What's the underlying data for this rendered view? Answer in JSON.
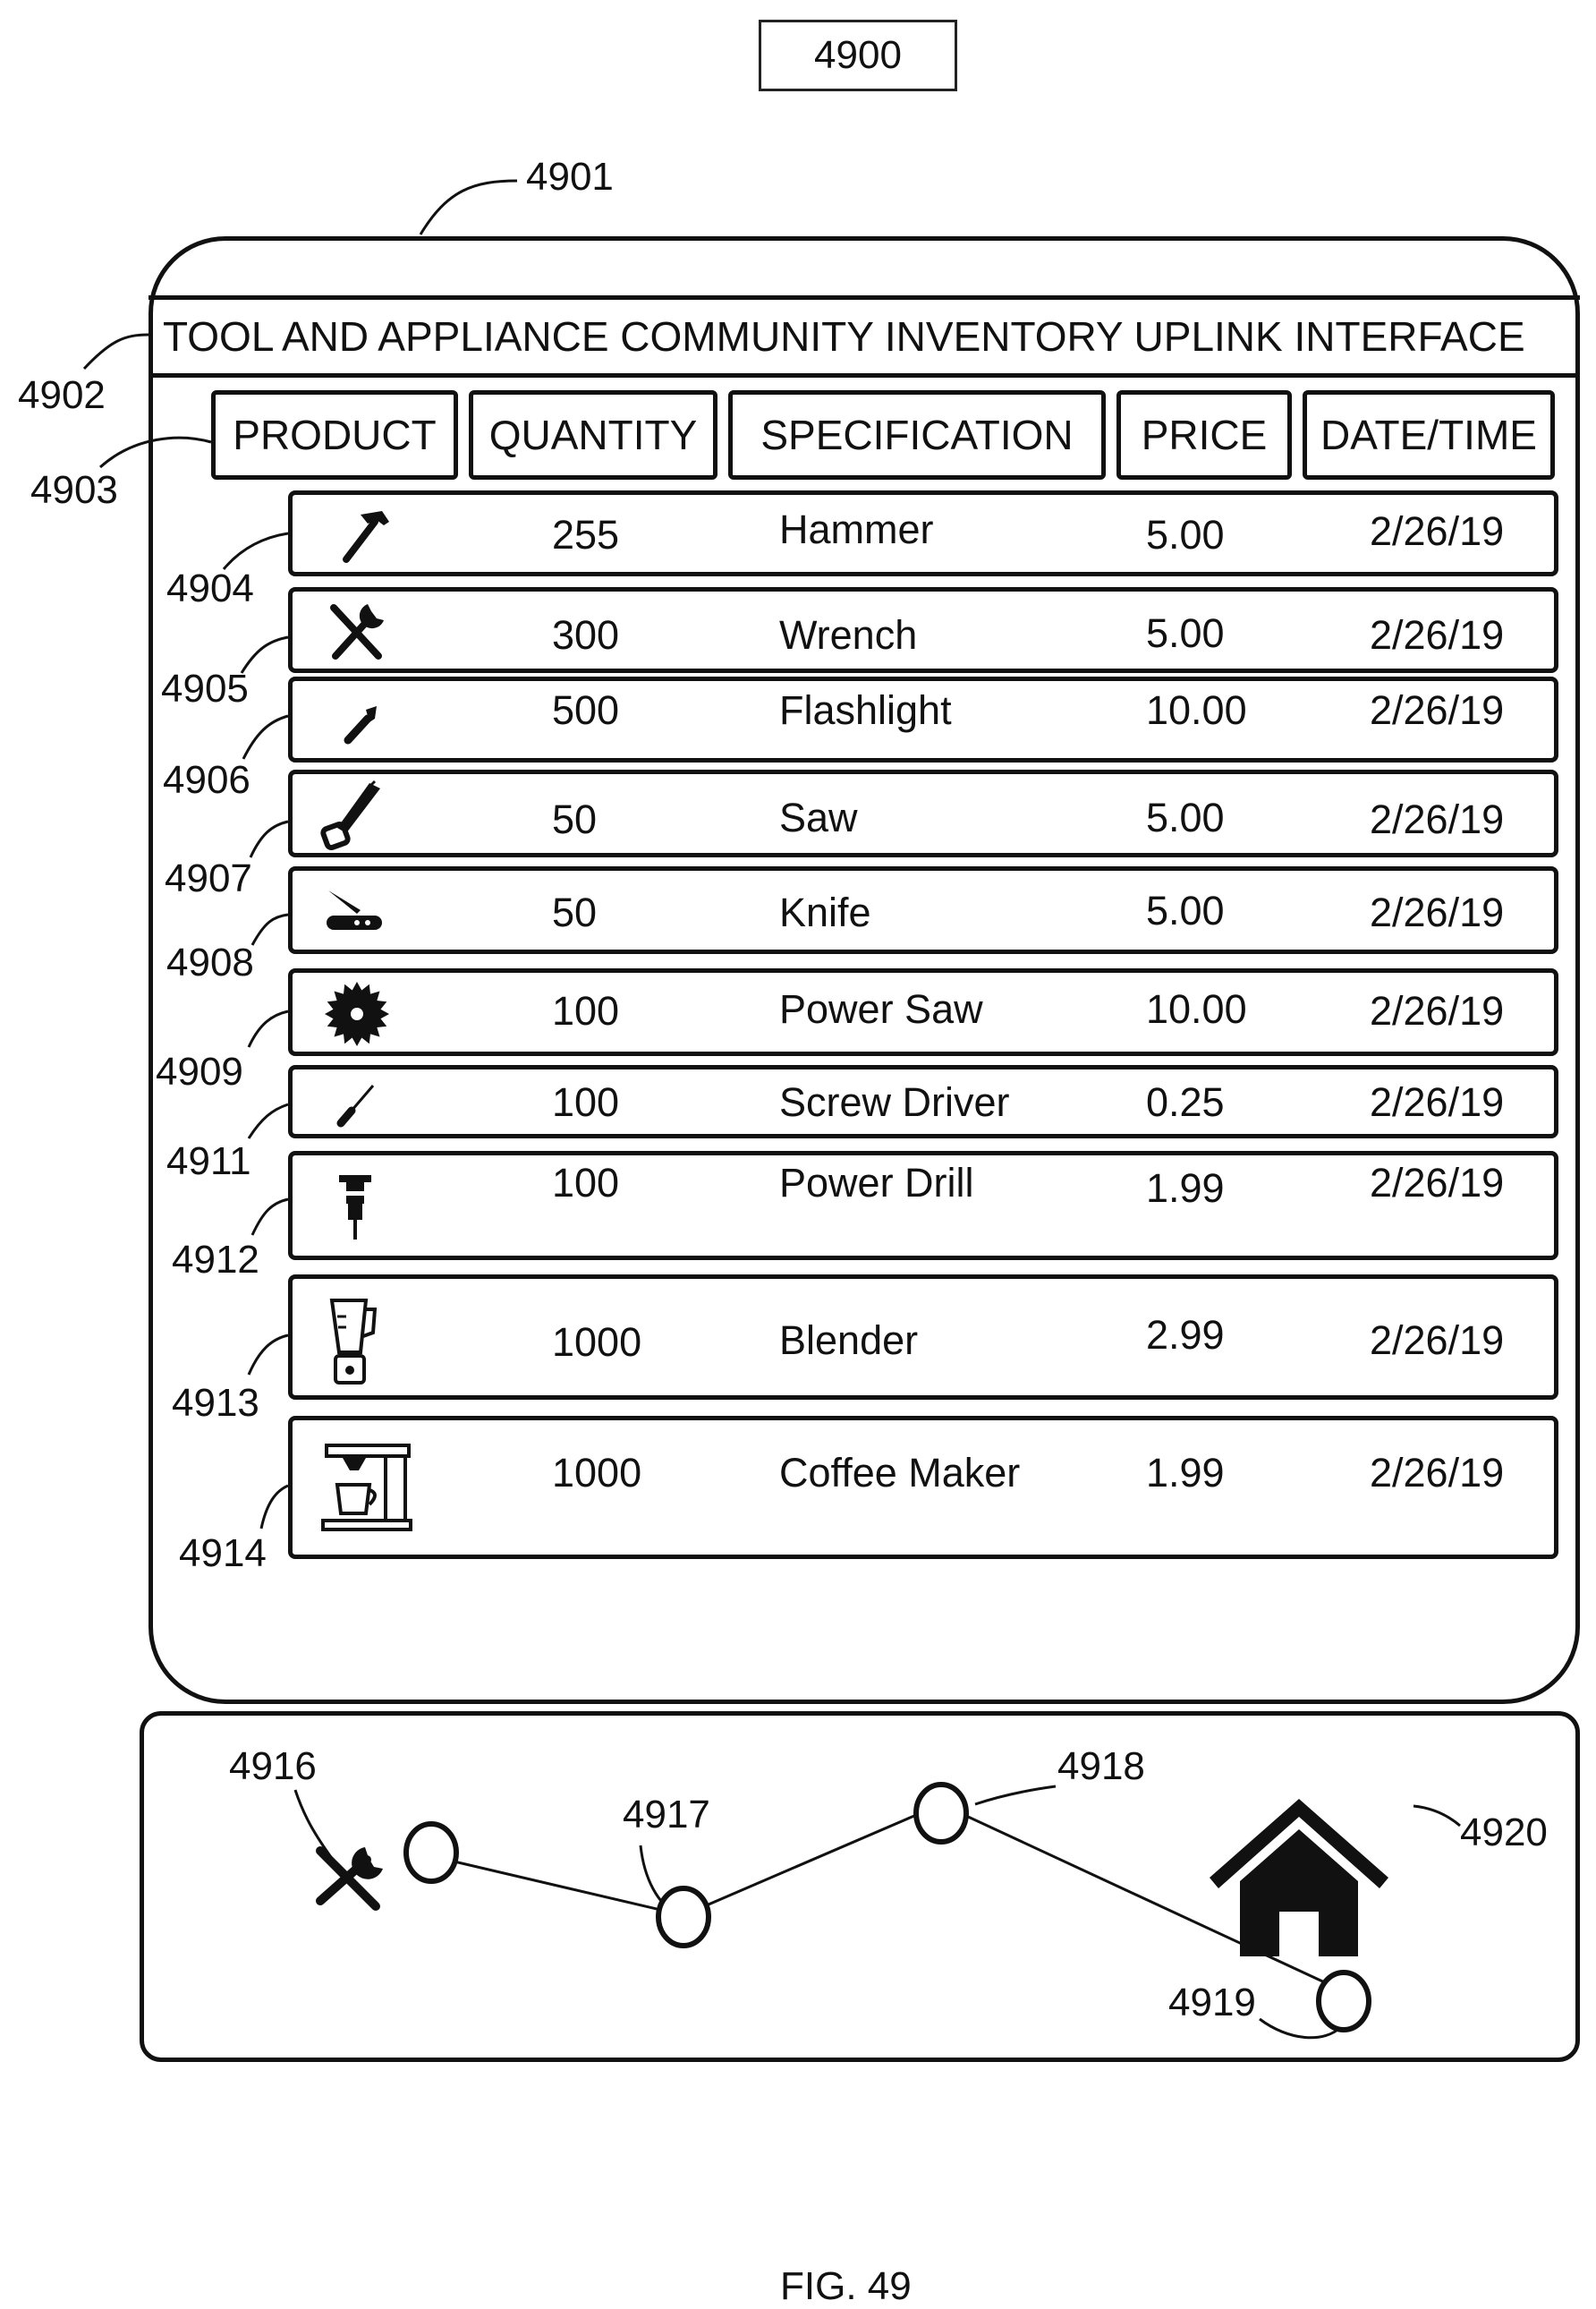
{
  "figure": {
    "number": "4900",
    "caption": "FIG. 49"
  },
  "refs": {
    "device": "4901",
    "title_bar": "4902",
    "header_row": "4903",
    "nav_tool": "4916",
    "nav_node_1": "4917",
    "nav_node_2": "4918",
    "nav_node_3": "4919",
    "nav_home": "4920"
  },
  "interface": {
    "title": "TOOL AND APPLIANCE COMMUNITY INVENTORY UPLINK INTERFACE",
    "columns": [
      "PRODUCT",
      "QUANTITY",
      "SPECIFICATION",
      "PRICE",
      "DATE/TIME"
    ],
    "rows": [
      {
        "ref": "4904",
        "icon": "hammer-icon",
        "quantity": "255",
        "spec": "Hammer",
        "price": "5.00",
        "date": "2/26/19"
      },
      {
        "ref": "4905",
        "icon": "wrench-icon",
        "quantity": "300",
        "spec": "Wrench",
        "price": "5.00",
        "date": "2/26/19"
      },
      {
        "ref": "4906",
        "icon": "flashlight-icon",
        "quantity": "500",
        "spec": "Flashlight",
        "price": "10.00",
        "date": "2/26/19"
      },
      {
        "ref": "4907",
        "icon": "saw-icon",
        "quantity": "50",
        "spec": "Saw",
        "price": "5.00",
        "date": "2/26/19"
      },
      {
        "ref": "4908",
        "icon": "knife-icon",
        "quantity": "50",
        "spec": "Knife",
        "price": "5.00",
        "date": "2/26/19"
      },
      {
        "ref": "4909",
        "icon": "power-saw-icon",
        "quantity": "100",
        "spec": "Power Saw",
        "price": "10.00",
        "date": "2/26/19"
      },
      {
        "ref": "4911",
        "icon": "screwdriver-icon",
        "quantity": "100",
        "spec": "Screw Driver",
        "price": "0.25",
        "date": "2/26/19"
      },
      {
        "ref": "4912",
        "icon": "power-drill-icon",
        "quantity": "100",
        "spec": "Power Drill",
        "price": "1.99",
        "date": "2/26/19"
      },
      {
        "ref": "4913",
        "icon": "blender-icon",
        "quantity": "1000",
        "spec": "Blender",
        "price": "2.99",
        "date": "2/26/19"
      },
      {
        "ref": "4914",
        "icon": "coffee-maker-icon",
        "quantity": "1000",
        "spec": "Coffee Maker",
        "price": "1.99",
        "date": "2/26/19"
      }
    ]
  }
}
